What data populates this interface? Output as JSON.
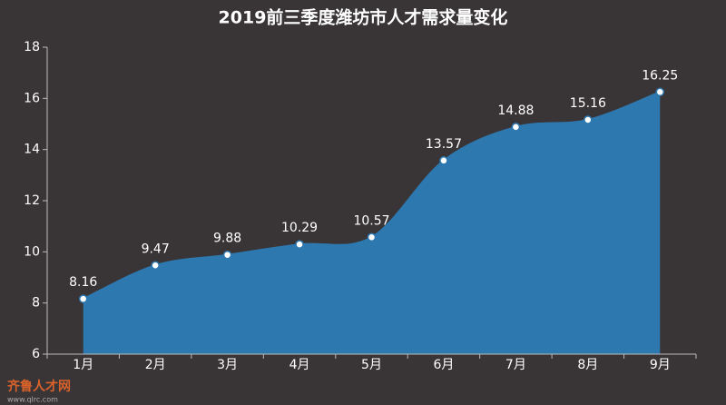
{
  "chart_data": {
    "type": "area",
    "title": "2019前三季度潍坊市人才需求量变化",
    "categories": [
      "1月",
      "2月",
      "3月",
      "4月",
      "5月",
      "6月",
      "7月",
      "8月",
      "9月"
    ],
    "values": [
      8.16,
      9.47,
      9.88,
      10.29,
      10.57,
      13.57,
      14.88,
      15.16,
      16.25
    ],
    "color": "#2e78b0",
    "ylim": [
      6,
      18
    ],
    "yticks": [
      6,
      8,
      10,
      12,
      14,
      16,
      18
    ],
    "grid": false,
    "watermark": [
      "齐鲁人才网",
      "www.qlrc.com"
    ]
  }
}
